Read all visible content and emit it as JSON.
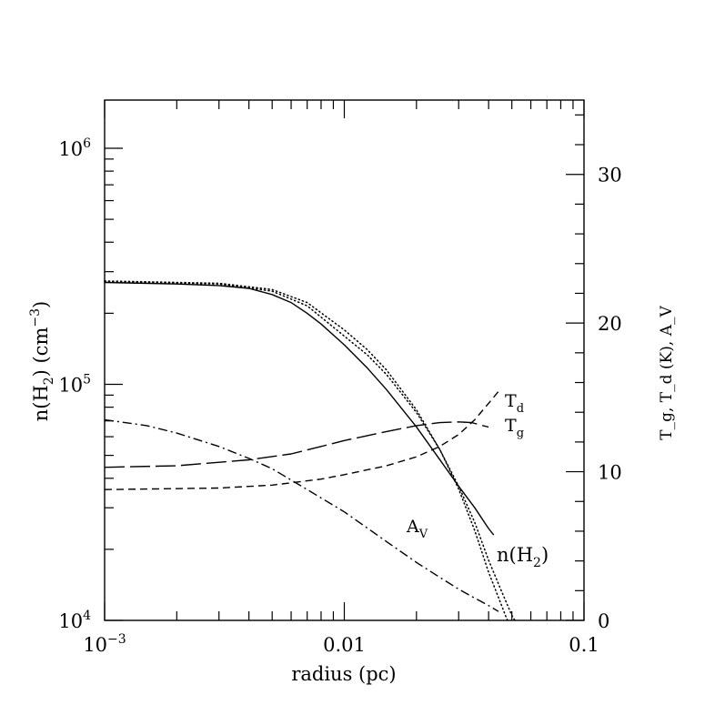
{
  "chart_data": {
    "type": "line",
    "xlabel": "radius (pc)",
    "ylabel_left": {
      "base": "n(H",
      "sub": "2",
      "mid": ")  (cm",
      "sup": "−3",
      "end": ")"
    },
    "ylabel_right": "T_g, T_d (K), A_V",
    "x_scale": "log",
    "y_left_scale": "log",
    "xlim": [
      0.001,
      0.1
    ],
    "ylim_left": [
      10000,
      1600000
    ],
    "ylim_right": [
      0,
      35
    ],
    "x_ticks": [
      {
        "value": 0.001,
        "base": "10",
        "exp": "−3"
      },
      {
        "value": 0.01,
        "label": "0.01"
      },
      {
        "value": 0.1,
        "label": "0.1"
      }
    ],
    "y_left_ticks": [
      {
        "value": 10000,
        "base": "10",
        "exp": "4"
      },
      {
        "value": 100000,
        "base": "10",
        "exp": "5"
      },
      {
        "value": 1000000,
        "base": "10",
        "exp": "6"
      }
    ],
    "y_right_ticks": [
      0,
      10,
      20,
      30
    ],
    "series": [
      {
        "name": "n(H2)",
        "axis": "left",
        "style": "solid",
        "points": [
          [
            0.001,
            270000
          ],
          [
            0.002,
            266000
          ],
          [
            0.003,
            262000
          ],
          [
            0.004,
            255000
          ],
          [
            0.005,
            240000
          ],
          [
            0.006,
            222000
          ],
          [
            0.007,
            200000
          ],
          [
            0.008,
            180000
          ],
          [
            0.01,
            147000
          ],
          [
            0.0125,
            117000
          ],
          [
            0.015,
            95000
          ],
          [
            0.02,
            66000
          ],
          [
            0.025,
            48000
          ],
          [
            0.03,
            37000
          ],
          [
            0.035,
            30000
          ],
          [
            0.04,
            24500
          ],
          [
            0.042,
            23000
          ]
        ]
      },
      {
        "axis": "left",
        "style": "dotted",
        "points": [
          [
            0.001,
            274000
          ],
          [
            0.003,
            268000
          ],
          [
            0.005,
            252000
          ],
          [
            0.007,
            222000
          ],
          [
            0.01,
            170000
          ],
          [
            0.0125,
            140000
          ],
          [
            0.015,
            115000
          ],
          [
            0.02,
            78000
          ],
          [
            0.025,
            53000
          ],
          [
            0.03,
            36000
          ],
          [
            0.035,
            24000
          ],
          [
            0.04,
            16000
          ],
          [
            0.044,
            12500
          ],
          [
            0.047,
            10500
          ],
          [
            0.048,
            10000
          ]
        ]
      },
      {
        "axis": "left",
        "style": "dotted",
        "points": [
          [
            0.001,
            272000
          ],
          [
            0.003,
            266000
          ],
          [
            0.005,
            248000
          ],
          [
            0.007,
            215000
          ],
          [
            0.01,
            160000
          ],
          [
            0.0125,
            133000
          ],
          [
            0.015,
            110000
          ],
          [
            0.02,
            76000
          ],
          [
            0.025,
            53000
          ],
          [
            0.03,
            37000
          ],
          [
            0.035,
            26000
          ],
          [
            0.04,
            18000
          ],
          [
            0.045,
            13500
          ],
          [
            0.05,
            10500
          ],
          [
            0.0515,
            10000
          ]
        ]
      },
      {
        "name": "T_g",
        "axis": "right",
        "style": "long-dash",
        "points": [
          [
            0.001,
            10.3
          ],
          [
            0.002,
            10.4
          ],
          [
            0.004,
            10.8
          ],
          [
            0.006,
            11.2
          ],
          [
            0.008,
            11.7
          ],
          [
            0.01,
            12.1
          ],
          [
            0.015,
            12.7
          ],
          [
            0.02,
            13.1
          ],
          [
            0.025,
            13.3
          ],
          [
            0.03,
            13.35
          ],
          [
            0.034,
            13.3
          ],
          [
            0.04,
            13.0
          ]
        ]
      },
      {
        "name": "T_d",
        "axis": "right",
        "style": "short-dash",
        "points": [
          [
            0.001,
            8.8
          ],
          [
            0.003,
            8.9
          ],
          [
            0.005,
            9.1
          ],
          [
            0.008,
            9.5
          ],
          [
            0.01,
            9.8
          ],
          [
            0.015,
            10.4
          ],
          [
            0.02,
            11.0
          ],
          [
            0.025,
            11.7
          ],
          [
            0.03,
            12.5
          ],
          [
            0.035,
            13.5
          ],
          [
            0.04,
            14.6
          ],
          [
            0.045,
            15.6
          ]
        ]
      },
      {
        "name": "A_V",
        "axis": "right",
        "style": "dash-dot",
        "points": [
          [
            0.001,
            13.5
          ],
          [
            0.0015,
            13.1
          ],
          [
            0.002,
            12.6
          ],
          [
            0.003,
            11.7
          ],
          [
            0.004,
            10.9
          ],
          [
            0.005,
            10.2
          ],
          [
            0.007,
            8.8
          ],
          [
            0.01,
            7.3
          ],
          [
            0.015,
            5.3
          ],
          [
            0.02,
            3.9
          ],
          [
            0.025,
            2.9
          ],
          [
            0.03,
            2.1
          ],
          [
            0.035,
            1.5
          ],
          [
            0.04,
            1.0
          ],
          [
            0.044,
            0.6
          ]
        ]
      }
    ],
    "labels": {
      "nH2": {
        "base": "n(H",
        "sub": "2",
        "end": ")"
      },
      "Td": {
        "base": "T",
        "sub": "d"
      },
      "Tg": {
        "base": "T",
        "sub": "g"
      },
      "Av": {
        "base": "A",
        "sub": "V"
      }
    }
  }
}
